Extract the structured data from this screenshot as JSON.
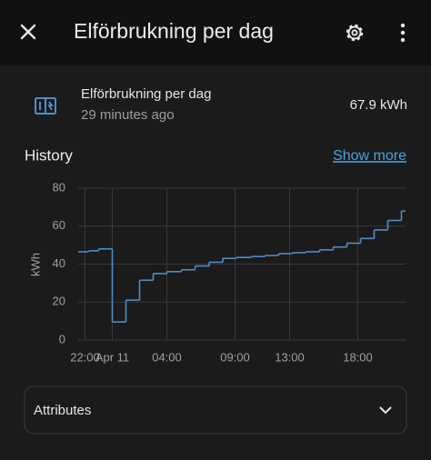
{
  "header": {
    "title": "Elförbrukning per dag"
  },
  "entity": {
    "name": "Elförbrukning per dag",
    "last_changed": "29 minutes ago",
    "state": "67.9 kWh"
  },
  "history": {
    "title": "History",
    "link": "Show more"
  },
  "attributes": {
    "title": "Attributes"
  },
  "chart_data": {
    "type": "line",
    "step": "post",
    "color": "#4f8cc9",
    "ylabel": "kWh",
    "grid": true,
    "x": [
      -0.5,
      0.27,
      1.0,
      2.0,
      3.0,
      4.0,
      5.0,
      6.0,
      7.07,
      8.07,
      9.1,
      10.1,
      11.1,
      12.2,
      13.2,
      14.2,
      15.2,
      16.2,
      17.2,
      18.2,
      19.2,
      20.2,
      21.2,
      22.2,
      23.2
    ],
    "values": [
      46.5,
      47,
      48,
      9.5,
      21,
      31.5,
      35,
      36,
      37,
      39,
      41,
      43,
      43.5,
      44,
      44.5,
      45.5,
      46,
      46.5,
      47.5,
      49,
      51,
      53.5,
      58,
      63,
      67.9
    ],
    "xlim": [
      -0.5,
      23.5
    ],
    "xticks": [
      {
        "value": 0,
        "label": "22:00"
      },
      {
        "value": 2,
        "label": "Apr 11"
      },
      {
        "value": 6,
        "label": "04:00"
      },
      {
        "value": 11,
        "label": "09:00"
      },
      {
        "value": 15,
        "label": "13:00"
      },
      {
        "value": 20,
        "label": "18:00"
      }
    ],
    "ylim": [
      0,
      80
    ],
    "yticks": [
      0,
      20,
      40,
      60,
      80
    ]
  }
}
